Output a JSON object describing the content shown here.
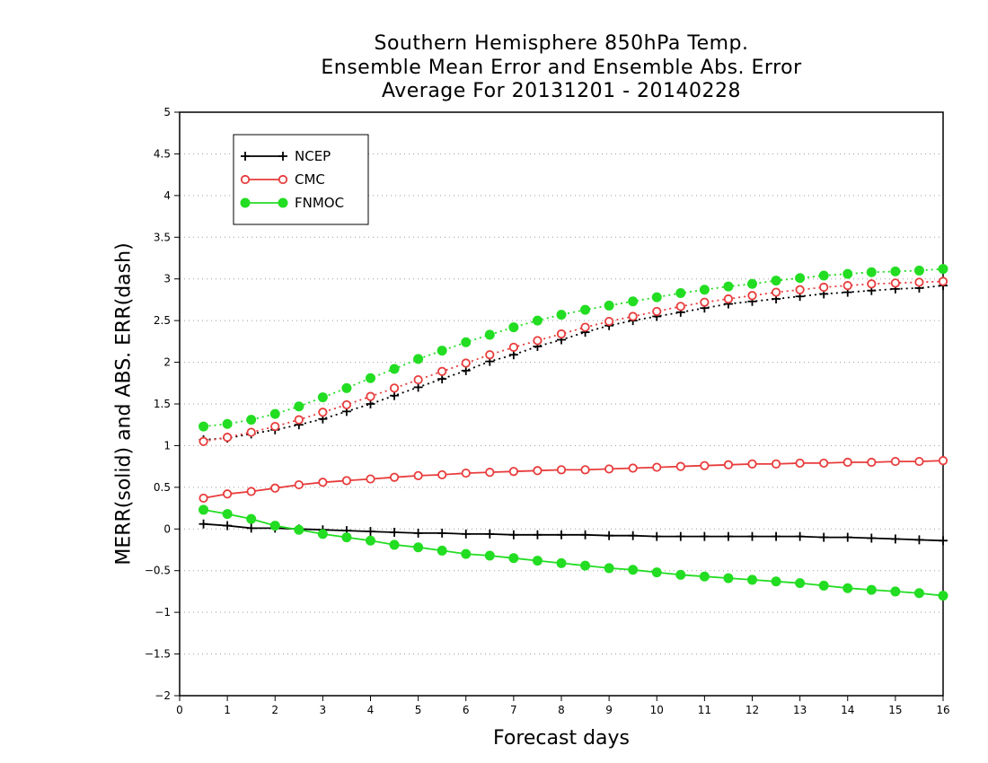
{
  "chart_data": {
    "type": "line",
    "title": [
      "Southern Hemisphere 850hPa Temp.",
      "Ensemble Mean Error and Ensemble Abs. Error",
      "Average For 20131201 - 20140228"
    ],
    "xlabel": "Forecast days",
    "ylabel": "MERR(solid) and ABS. ERR(dash)",
    "xlim": [
      0,
      16
    ],
    "ylim": [
      -2,
      5
    ],
    "xticks": [
      "0",
      "1",
      "2",
      "3",
      "4",
      "5",
      "6",
      "7",
      "8",
      "9",
      "10",
      "11",
      "12",
      "13",
      "14",
      "15",
      "16"
    ],
    "yticks": [
      "−2",
      "−1.5",
      "−1",
      "−0.5",
      "0",
      "0.5",
      "1",
      "1.5",
      "2",
      "2.5",
      "3",
      "3.5",
      "4",
      "4.5",
      "5"
    ],
    "grid": "horizontal dotted",
    "legend_position": "top-left",
    "x": [
      0.5,
      1,
      1.5,
      2,
      2.5,
      3,
      3.5,
      4,
      4.5,
      5,
      5.5,
      6,
      6.5,
      7,
      7.5,
      8,
      8.5,
      9,
      9.5,
      10,
      10.5,
      11,
      11.5,
      12,
      12.5,
      13,
      13.5,
      14,
      14.5,
      15,
      15.5,
      16
    ],
    "series": [
      {
        "name": "NCEP",
        "color": "#000000",
        "marker": "plus",
        "style": "solid",
        "values": [
          0.06,
          0.04,
          0.01,
          0.01,
          0.0,
          -0.01,
          -0.02,
          -0.03,
          -0.04,
          -0.05,
          -0.05,
          -0.06,
          -0.06,
          -0.07,
          -0.07,
          -0.07,
          -0.07,
          -0.08,
          -0.08,
          -0.09,
          -0.09,
          -0.09,
          -0.09,
          -0.09,
          -0.09,
          -0.09,
          -0.1,
          -0.1,
          -0.11,
          -0.12,
          -0.13,
          -0.14
        ]
      },
      {
        "name": "NCEP",
        "color": "#000000",
        "marker": "plus",
        "style": "dash",
        "values": [
          1.07,
          1.09,
          1.14,
          1.19,
          1.25,
          1.32,
          1.41,
          1.5,
          1.6,
          1.7,
          1.8,
          1.9,
          2.01,
          2.09,
          2.19,
          2.27,
          2.36,
          2.44,
          2.5,
          2.55,
          2.6,
          2.65,
          2.7,
          2.73,
          2.76,
          2.79,
          2.82,
          2.84,
          2.86,
          2.88,
          2.89,
          2.92
        ]
      },
      {
        "name": "CMC",
        "color": "#e83c3c",
        "marker": "circle-open",
        "style": "solid",
        "values": [
          0.37,
          0.42,
          0.45,
          0.49,
          0.53,
          0.56,
          0.58,
          0.6,
          0.62,
          0.64,
          0.65,
          0.67,
          0.68,
          0.69,
          0.7,
          0.71,
          0.71,
          0.72,
          0.73,
          0.74,
          0.75,
          0.76,
          0.77,
          0.78,
          0.78,
          0.79,
          0.79,
          0.8,
          0.8,
          0.81,
          0.81,
          0.82
        ]
      },
      {
        "name": "CMC",
        "color": "#e83c3c",
        "marker": "circle-open",
        "style": "dash",
        "values": [
          1.05,
          1.1,
          1.16,
          1.23,
          1.31,
          1.4,
          1.49,
          1.59,
          1.69,
          1.79,
          1.89,
          1.99,
          2.09,
          2.18,
          2.26,
          2.34,
          2.42,
          2.49,
          2.55,
          2.61,
          2.67,
          2.72,
          2.76,
          2.8,
          2.84,
          2.87,
          2.9,
          2.92,
          2.94,
          2.95,
          2.96,
          2.97
        ]
      },
      {
        "name": "FNMOC",
        "color": "#22dd22",
        "marker": "circle-filled",
        "style": "solid",
        "values": [
          0.23,
          0.18,
          0.12,
          0.04,
          -0.01,
          -0.06,
          -0.1,
          -0.14,
          -0.19,
          -0.22,
          -0.26,
          -0.3,
          -0.32,
          -0.35,
          -0.38,
          -0.41,
          -0.44,
          -0.47,
          -0.49,
          -0.52,
          -0.55,
          -0.57,
          -0.59,
          -0.61,
          -0.63,
          -0.65,
          -0.68,
          -0.71,
          -0.73,
          -0.75,
          -0.77,
          -0.8
        ]
      },
      {
        "name": "FNMOC",
        "color": "#22dd22",
        "marker": "circle-filled",
        "style": "dash",
        "values": [
          1.23,
          1.26,
          1.31,
          1.38,
          1.47,
          1.58,
          1.69,
          1.81,
          1.92,
          2.04,
          2.14,
          2.24,
          2.33,
          2.42,
          2.5,
          2.57,
          2.63,
          2.68,
          2.73,
          2.78,
          2.83,
          2.87,
          2.91,
          2.94,
          2.98,
          3.01,
          3.04,
          3.06,
          3.08,
          3.09,
          3.1,
          3.12
        ]
      }
    ],
    "legend": [
      {
        "label": "NCEP",
        "color": "#000000",
        "marker": "plus"
      },
      {
        "label": "CMC",
        "color": "#e83c3c",
        "marker": "circle-open"
      },
      {
        "label": "FNMOC",
        "color": "#22dd22",
        "marker": "circle-filled"
      }
    ]
  }
}
